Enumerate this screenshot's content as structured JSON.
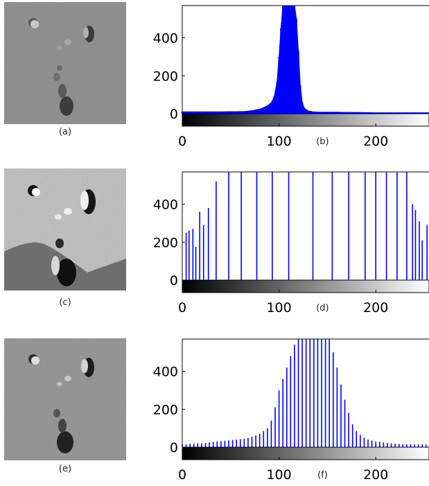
{
  "colors": {
    "bars": "#0000ff",
    "axis": "#000000"
  },
  "captions": {
    "a": "(a)",
    "c": "(c)",
    "e": "(e)"
  },
  "chart_data": [
    {
      "id": "b",
      "type": "bar",
      "label": "(b)",
      "xlim": [
        0,
        255
      ],
      "ylim": [
        0,
        570
      ],
      "xticks": [
        0,
        100,
        200
      ],
      "yticks": [
        0,
        200,
        400
      ],
      "grid": false,
      "colorbar": "grayscale",
      "x": [
        0,
        8,
        16,
        24,
        32,
        40,
        48,
        56,
        64,
        68,
        72,
        76,
        80,
        84,
        88,
        92,
        95,
        98,
        100,
        102,
        104,
        106,
        108,
        110,
        112,
        114,
        116,
        118,
        120,
        122,
        124,
        126,
        130,
        135,
        140,
        150,
        160,
        170,
        180,
        190,
        200,
        210,
        220,
        230,
        240,
        250,
        255
      ],
      "y": [
        10,
        10,
        10,
        10,
        10,
        10,
        11,
        11,
        12,
        14,
        16,
        20,
        24,
        32,
        42,
        58,
        90,
        170,
        300,
        450,
        570,
        570,
        570,
        570,
        570,
        570,
        570,
        500,
        330,
        150,
        60,
        30,
        15,
        10,
        8,
        8,
        8,
        7,
        7,
        6,
        5,
        5,
        5,
        5,
        5,
        5,
        5
      ]
    },
    {
      "id": "d",
      "type": "bar",
      "label": "(d)",
      "xlim": [
        0,
        255
      ],
      "ylim": [
        0,
        570
      ],
      "xticks": [
        0,
        100,
        200
      ],
      "yticks": [
        0,
        200,
        400
      ],
      "grid": false,
      "colorbar": "grayscale",
      "x": [
        4,
        7,
        11,
        14,
        18,
        22,
        27,
        35,
        48,
        61,
        77,
        93,
        110,
        135,
        155,
        172,
        189,
        200,
        211,
        222,
        232,
        238,
        241,
        245,
        248,
        253
      ],
      "y": [
        250,
        260,
        270,
        175,
        360,
        290,
        380,
        520,
        570,
        570,
        570,
        570,
        570,
        570,
        570,
        570,
        570,
        570,
        570,
        570,
        570,
        400,
        370,
        310,
        210,
        290
      ]
    },
    {
      "id": "f",
      "type": "bar",
      "label": "(f)",
      "xlim": [
        0,
        255
      ],
      "ylim": [
        0,
        570
      ],
      "xticks": [
        0,
        100,
        200
      ],
      "yticks": [
        0,
        200,
        400
      ],
      "grid": false,
      "colorbar": "grayscale",
      "x": [
        0,
        4,
        8,
        12,
        16,
        20,
        24,
        28,
        32,
        36,
        40,
        44,
        48,
        52,
        56,
        60,
        64,
        68,
        72,
        76,
        80,
        84,
        88,
        92,
        96,
        100,
        104,
        108,
        112,
        116,
        120,
        124,
        128,
        132,
        136,
        140,
        144,
        148,
        152,
        156,
        160,
        164,
        168,
        172,
        176,
        180,
        184,
        188,
        192,
        196,
        200,
        204,
        208,
        212,
        216,
        220,
        224,
        228,
        232,
        236,
        240,
        244,
        248,
        252
      ],
      "y": [
        15,
        15,
        18,
        18,
        20,
        20,
        22,
        25,
        28,
        30,
        32,
        34,
        36,
        38,
        40,
        42,
        44,
        48,
        55,
        62,
        70,
        85,
        100,
        140,
        210,
        300,
        360,
        420,
        480,
        540,
        570,
        570,
        570,
        570,
        570,
        570,
        570,
        570,
        570,
        500,
        420,
        330,
        250,
        180,
        120,
        85,
        65,
        50,
        40,
        35,
        30,
        28,
        25,
        22,
        20,
        18,
        17,
        16,
        15,
        15,
        15,
        14,
        14,
        14
      ]
    }
  ]
}
